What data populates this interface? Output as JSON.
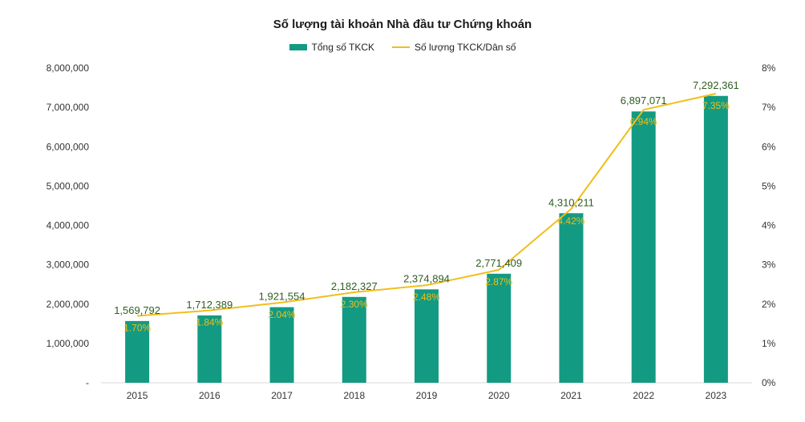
{
  "chart_data": {
    "type": "bar",
    "title": "Số lượng tài khoản Nhà đầu tư Chứng khoán",
    "categories": [
      "2015",
      "2016",
      "2017",
      "2018",
      "2019",
      "2020",
      "2021",
      "2022",
      "2023"
    ],
    "series": [
      {
        "name": "Tổng số TKCK",
        "type": "bar",
        "axis": "left",
        "color": "#129B82",
        "values": [
          1569792,
          1712389,
          1921554,
          2182327,
          2374894,
          2771409,
          4310211,
          6897071,
          7292361
        ],
        "labels": [
          "1,569,792",
          "1,712,389",
          "1,921,554",
          "2,182,327",
          "2,374,894",
          "2,771,409",
          "4,310,211",
          "6,897,071",
          "7,292,361"
        ],
        "label_color": "#2E5E1F"
      },
      {
        "name": "Số lượng TKCK/Dân số",
        "type": "line",
        "axis": "right",
        "color": "#F2BE1A",
        "values": [
          1.7,
          1.84,
          2.04,
          2.3,
          2.48,
          2.87,
          4.42,
          6.94,
          7.35
        ],
        "labels": [
          "1.70%",
          "1.84%",
          "2.04%",
          "2.30%",
          "2.48%",
          "2.87%",
          "4.42%",
          "6.94%",
          "7.35%"
        ],
        "label_color": "#F2BE1A"
      }
    ],
    "ylim_left": [
      0,
      8000000
    ],
    "yticks_left": [
      "-",
      "1,000,000",
      "2,000,000",
      "3,000,000",
      "4,000,000",
      "5,000,000",
      "6,000,000",
      "7,000,000",
      "8,000,000"
    ],
    "ylim_right": [
      0,
      8
    ],
    "yticks_right": [
      "0%",
      "1%",
      "2%",
      "3%",
      "4%",
      "5%",
      "6%",
      "7%",
      "8%"
    ],
    "legend_position": "top",
    "grid": false
  }
}
